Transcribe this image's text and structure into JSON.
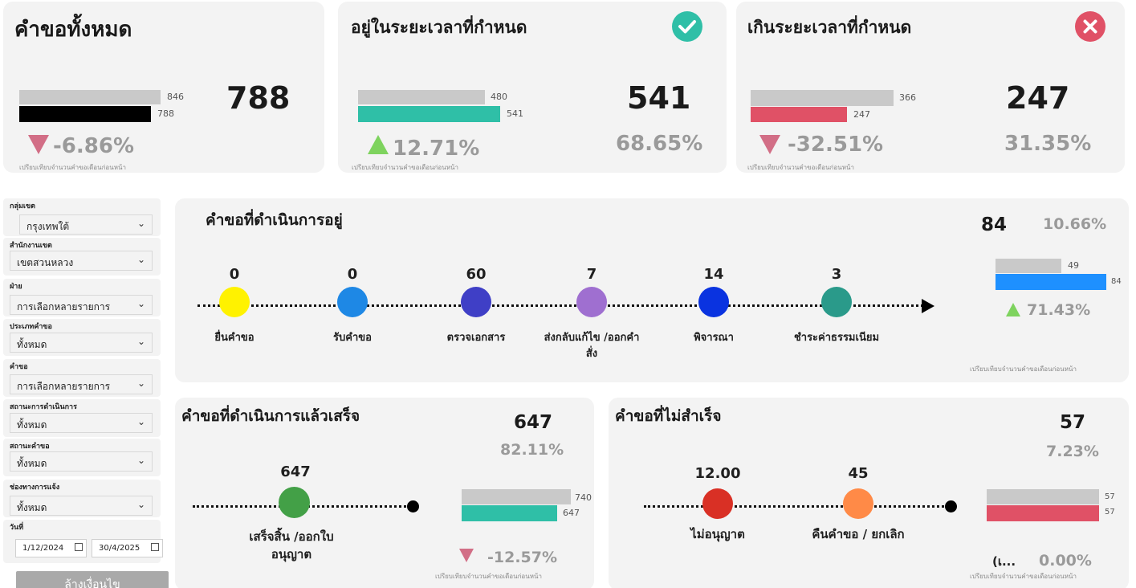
{
  "kpi_total": {
    "title": "คำขอทั้งหมด",
    "value": "788",
    "prev_bar": "846",
    "curr_bar": "788",
    "prev_fraction": 0.846,
    "curr_fraction": 0.788,
    "change": "-6.86%",
    "note": "เปรียบเทียบจำนวนคำขอเดือนก่อนหน้า"
  },
  "kpi_ontime": {
    "title": "อยู่ในระยะเวลาที่กำหนด",
    "value": "541",
    "percent": "68.65%",
    "prev_bar": "480",
    "curr_bar": "541",
    "prev_fraction": 0.48,
    "curr_fraction": 0.541,
    "change": "12.71%",
    "note": "เปรียบเทียบจำนวนคำขอเดือนก่อนหน้า",
    "icon": "check-icon",
    "color": "#2fbfa7"
  },
  "kpi_overdue": {
    "title": "เกินระยะเวลาที่กำหนด",
    "value": "247",
    "percent": "31.35%",
    "prev_bar": "366",
    "curr_bar": "247",
    "prev_fraction": 0.366,
    "curr_fraction": 0.247,
    "change": "-32.51%",
    "note": "เปรียบเทียบจำนวนคำขอเดือนก่อนหน้า",
    "icon": "close-icon",
    "color": "#e05166"
  },
  "filters": {
    "zone_group": {
      "label": "กลุ่มเขต",
      "value": "กรุงเทพใต้"
    },
    "district_office": {
      "label": "สำนักงานเขต",
      "value": "เขตสวนหลวง"
    },
    "division": {
      "label": "ฝ่าย",
      "value": "การเลือกหลายรายการ"
    },
    "request_type": {
      "label": "ประเภทคำขอ",
      "value": "ทั้งหมด"
    },
    "request": {
      "label": "คำขอ",
      "value": "การเลือกหลายรายการ"
    },
    "process_status": {
      "label": "สถานะการดำเนินการ",
      "value": "ทั้งหมด"
    },
    "request_status": {
      "label": "สถานะคำขอ",
      "value": "ทั้งหมด"
    },
    "channel": {
      "label": "ช่องทางการแจ้ง",
      "value": "ทั้งหมด"
    },
    "date": {
      "label": "วันที่",
      "start": "1/12/2024",
      "end": "30/4/2025"
    },
    "clear_button": "ล้างเงื่อนไข"
  },
  "in_progress": {
    "title": "คำขอที่ดำเนินการอยู่",
    "value": "84",
    "percent": "10.66%",
    "prev_bar": "49",
    "curr_bar": "84",
    "prev_fraction": 0.49,
    "curr_fraction": 0.84,
    "change": "71.43%",
    "note": "เปรียบเทียบจำนวนคำขอเดือนก่อนหน้า",
    "stages": [
      {
        "count": "0",
        "label": "ยื่นคำขอ",
        "color": "#fff200"
      },
      {
        "count": "0",
        "label": "รับคำขอ",
        "color": "#1e88e5"
      },
      {
        "count": "60",
        "label": "ตรวจเอกสาร",
        "color": "#3f3fc6"
      },
      {
        "count": "7",
        "label": "ส่งกลับแก้ไข /ออกคำสั่ง",
        "color": "#9f6fd0"
      },
      {
        "count": "14",
        "label": "พิจารณา",
        "color": "#0a33e0"
      },
      {
        "count": "3",
        "label": "ชำระค่าธรรมเนียม",
        "color": "#2a9a8a"
      }
    ]
  },
  "completed": {
    "title": "คำขอที่ดำเนินการแล้วเสร็จ",
    "value": "647",
    "percent": "82.11%",
    "prev_bar": "740",
    "curr_bar": "647",
    "prev_fraction": 0.74,
    "curr_fraction": 0.647,
    "change": "-12.57%",
    "note": "เปรียบเทียบจำนวนคำขอเดือนก่อนหน้า",
    "stage": {
      "count": "647",
      "label": "เสร็จสิ้น /ออกใบอนุญาต",
      "color": "#43a047"
    }
  },
  "not_completed": {
    "title": "คำขอที่ไม่สำเร็จ",
    "value": "57",
    "percent": "7.23%",
    "prev_bar": "57",
    "curr_bar": "57",
    "prev_fraction": 0.57,
    "curr_fraction": 0.57,
    "change": "0.00%",
    "change_prefix": "(เ...",
    "note": "เปรียบเทียบจำนวนคำขอเดือนก่อนหน้า",
    "stages": [
      {
        "count": "12.00",
        "label": "ไม่อนุญาต",
        "color": "#d93025"
      },
      {
        "count": "45",
        "label": "คืนคำขอ / ยกเลิก",
        "color": "#ff8a47"
      }
    ]
  }
}
